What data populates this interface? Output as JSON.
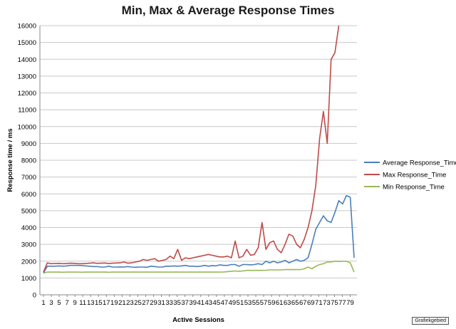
{
  "chart_data": {
    "type": "line",
    "title": "Min, Max & Average Response Times",
    "xlabel": "Active Sessions",
    "ylabel": "Response time / ms",
    "ylim": [
      0,
      16000
    ],
    "yticks": [
      0,
      1000,
      2000,
      3000,
      4000,
      5000,
      6000,
      7000,
      8000,
      9000,
      10000,
      11000,
      12000,
      13000,
      14000,
      15000,
      16000
    ],
    "xlim": [
      1,
      80
    ],
    "xtick_labels": [
      "1",
      "3",
      "5",
      "7",
      "9",
      "11",
      "13",
      "15",
      "17",
      "19",
      "21",
      "23",
      "25",
      "27",
      "29",
      "31",
      "33",
      "35",
      "37",
      "39",
      "41",
      "43",
      "45",
      "47",
      "49",
      "51",
      "53",
      "55",
      "57",
      "59",
      "61",
      "63",
      "65",
      "67",
      "69",
      "71",
      "73",
      "75",
      "77",
      "79"
    ],
    "grid": "horizontal",
    "legend_position": "right",
    "series": [
      {
        "name": "Average Response_Time",
        "color": "#4a7ebb",
        "values": [
          1300,
          1700,
          1700,
          1700,
          1720,
          1700,
          1720,
          1750,
          1750,
          1750,
          1740,
          1720,
          1700,
          1680,
          1680,
          1650,
          1650,
          1700,
          1650,
          1650,
          1660,
          1650,
          1680,
          1650,
          1640,
          1650,
          1650,
          1640,
          1700,
          1680,
          1650,
          1650,
          1700,
          1700,
          1720,
          1700,
          1720,
          1750,
          1700,
          1700,
          1680,
          1700,
          1750,
          1700,
          1740,
          1720,
          1780,
          1750,
          1750,
          1800,
          1800,
          1700,
          1800,
          1800,
          1780,
          1800,
          1850,
          1800,
          2000,
          1900,
          2000,
          1900,
          1950,
          2050,
          1900,
          2000,
          2100,
          2000,
          2050,
          2200,
          3000,
          3900,
          4300,
          4700,
          4400,
          4300,
          4900,
          5600,
          5400,
          5900,
          5800,
          2200
        ]
      },
      {
        "name": "Max Response_Time",
        "color": "#be4b48",
        "values": [
          1350,
          1900,
          1850,
          1860,
          1870,
          1850,
          1860,
          1880,
          1870,
          1850,
          1850,
          1860,
          1880,
          1900,
          1870,
          1880,
          1890,
          1860,
          1880,
          1890,
          1900,
          1950,
          1880,
          1900,
          1950,
          2000,
          2100,
          2050,
          2100,
          2150,
          2000,
          2050,
          2100,
          2300,
          2150,
          2700,
          2050,
          2200,
          2150,
          2200,
          2250,
          2300,
          2350,
          2400,
          2350,
          2300,
          2250,
          2250,
          2300,
          2200,
          3200,
          2200,
          2300,
          2700,
          2350,
          2400,
          2800,
          4300,
          2700,
          3100,
          3200,
          2700,
          2500,
          3000,
          3600,
          3500,
          3000,
          2800,
          3300,
          4000,
          5000,
          6500,
          9300,
          10900,
          9000,
          14000,
          14400,
          16000
        ]
      },
      {
        "name": "Min Response_Time",
        "color": "#98b954",
        "values": [
          1300,
          1350,
          1350,
          1350,
          1350,
          1340,
          1350,
          1350,
          1350,
          1350,
          1340,
          1350,
          1350,
          1350,
          1350,
          1350,
          1350,
          1340,
          1350,
          1350,
          1350,
          1350,
          1350,
          1350,
          1350,
          1350,
          1350,
          1350,
          1350,
          1350,
          1350,
          1350,
          1350,
          1350,
          1350,
          1350,
          1350,
          1350,
          1350,
          1350,
          1350,
          1350,
          1350,
          1350,
          1350,
          1350,
          1350,
          1360,
          1380,
          1400,
          1420,
          1400,
          1420,
          1450,
          1450,
          1450,
          1450,
          1450,
          1460,
          1480,
          1480,
          1480,
          1480,
          1500,
          1500,
          1500,
          1500,
          1500,
          1550,
          1650,
          1550,
          1700,
          1800,
          1850,
          1950,
          1950,
          2000,
          1980,
          2000,
          2000,
          1900,
          1350
        ]
      }
    ]
  },
  "badge_label": "Grafiekgebied"
}
